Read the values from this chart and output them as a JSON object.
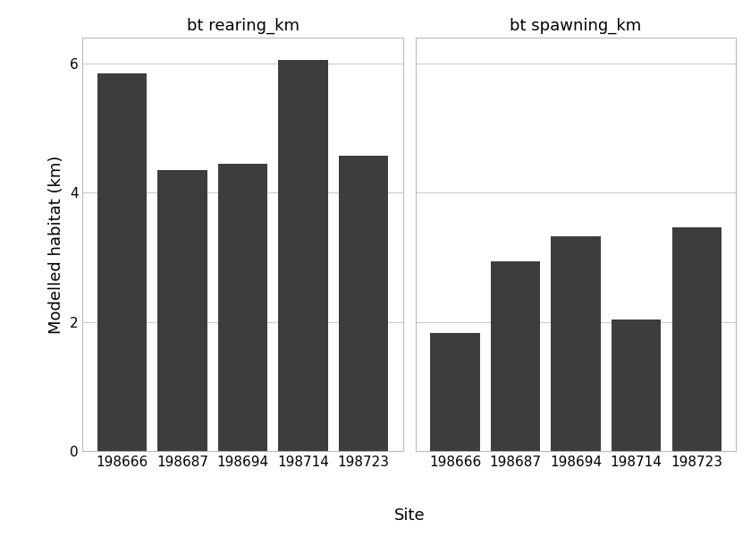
{
  "sites": [
    "198666",
    "198687",
    "198694",
    "198714",
    "198723"
  ],
  "rearing_values": [
    5.85,
    4.35,
    4.45,
    6.05,
    4.57
  ],
  "spawning_values": [
    1.83,
    2.93,
    3.33,
    2.03,
    3.47
  ],
  "bar_color": "#3d3d3d",
  "title_rearing": "bt rearing_km",
  "title_spawning": "bt spawning_km",
  "ylabel": "Modelled habitat (km)",
  "xlabel": "Site",
  "ylim": [
    0,
    6.4
  ],
  "yticks": [
    0,
    2,
    4,
    6
  ],
  "background_color": "#ffffff",
  "grid_color": "#cccccc",
  "title_fontsize": 13,
  "axis_label_fontsize": 13,
  "tick_fontsize": 11,
  "bar_width": 0.82
}
